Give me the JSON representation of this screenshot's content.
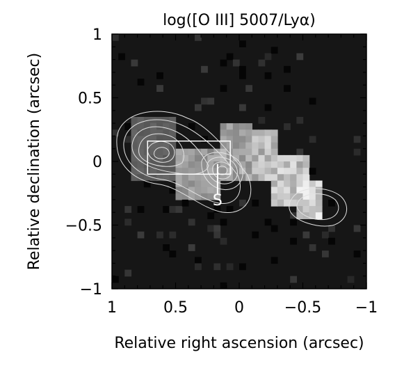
{
  "chart_data": {
    "type": "heatmap",
    "title": "log([O III] 5007/Lyα)",
    "xlabel": "Relative right ascension (arcsec)",
    "ylabel": "Relative declination (arcsec)",
    "xlim": [
      1,
      -1
    ],
    "ylim": [
      -1,
      1
    ],
    "xticks": [
      {
        "value": 1,
        "label": "1"
      },
      {
        "value": 0.5,
        "label": "0.5"
      },
      {
        "value": 0,
        "label": "0"
      },
      {
        "value": -0.5,
        "label": "−0.5"
      },
      {
        "value": -1,
        "label": "−1"
      }
    ],
    "yticks": [
      {
        "value": 1,
        "label": "1"
      },
      {
        "value": 0.5,
        "label": "0.5"
      },
      {
        "value": 0,
        "label": "0"
      },
      {
        "value": -0.5,
        "label": "−0.5"
      },
      {
        "value": -1,
        "label": "−1"
      }
    ],
    "colormap": "grayscale",
    "background_color": "#161616",
    "grid": false,
    "intensity_regions": [
      {
        "x": [
          0.15,
          -0.1
        ],
        "y": [
          0.32,
          -0.15
        ],
        "value": 0.6
      },
      {
        "x": [
          -0.1,
          -0.3
        ],
        "y": [
          0.25,
          -0.15
        ],
        "value": 0.72
      },
      {
        "x": [
          -0.25,
          -0.55
        ],
        "y": [
          0.05,
          -0.35
        ],
        "value": 0.78
      },
      {
        "x": [
          -0.45,
          -0.65
        ],
        "y": [
          -0.15,
          -0.45
        ],
        "value": 0.88
      },
      {
        "x": [
          0.5,
          0.15
        ],
        "y": [
          0.1,
          -0.3
        ],
        "value": 0.55
      },
      {
        "x": [
          0.85,
          0.5
        ],
        "y": [
          0.35,
          -0.15
        ],
        "value": 0.2
      }
    ],
    "overlays": {
      "box": {
        "x": [
          0.72,
          0.07
        ],
        "y": [
          0.16,
          -0.1
        ]
      },
      "marker": {
        "label": "S",
        "x": 0.17,
        "y": -0.3,
        "line_y": [
          -0.02,
          -0.26
        ]
      },
      "contour_centers": [
        {
          "x": 0.62,
          "y": 0.06
        },
        {
          "x": 0.13,
          "y": -0.02
        },
        {
          "x": -0.6,
          "y": -0.3
        }
      ]
    }
  }
}
